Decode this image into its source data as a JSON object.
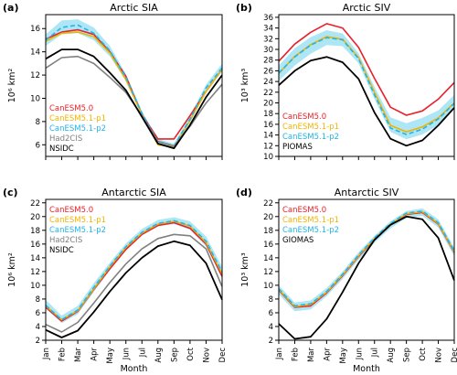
{
  "colors": {
    "CanESM5.0": "#e8202a",
    "CanESM5.1-p1": "#f0b400",
    "CanESM5.1-p2": "#22b4e6",
    "Had2CIS": "#808080",
    "NSIDC": "#000000",
    "PIOMAS": "#000000",
    "GIOMAS": "#000000",
    "band": "#aee6f6"
  },
  "chart_data": [
    {
      "type": "line",
      "panel_label": "(a)",
      "title": "Arctic SIA",
      "xlabel": "",
      "ylabel": "10⁶ km²",
      "categories": [
        "Jan",
        "Feb",
        "Mar",
        "Apr",
        "May",
        "Jun",
        "Jul",
        "Aug",
        "Sep",
        "Oct",
        "Nov",
        "Dec"
      ],
      "ylim": [
        5,
        17.2
      ],
      "yticks": [
        6,
        8,
        10,
        12,
        14,
        16
      ],
      "band": {
        "upper": [
          15.5,
          16.7,
          16.8,
          16.1,
          14.5,
          12.1,
          8.9,
          6.5,
          6.1,
          8.5,
          11.2,
          13.0
        ],
        "lower": [
          14.5,
          15.5,
          15.6,
          15.0,
          13.6,
          11.5,
          8.5,
          6.0,
          5.6,
          7.9,
          10.6,
          12.3
        ]
      },
      "series": [
        {
          "name": "CanESM5.0",
          "values": [
            15.1,
            15.7,
            15.9,
            15.5,
            14.0,
            11.9,
            8.6,
            6.5,
            6.5,
            8.5,
            10.6,
            12.5
          ]
        },
        {
          "name": "CanESM5.1-p1",
          "values": [
            14.9,
            15.6,
            15.7,
            15.3,
            13.9,
            11.6,
            8.6,
            6.0,
            5.8,
            8.1,
            10.6,
            12.5
          ]
        },
        {
          "name": "CanESM5.1-p2",
          "values": [
            15.0,
            16.1,
            16.3,
            15.6,
            14.1,
            11.8,
            8.7,
            6.3,
            5.9,
            8.2,
            10.9,
            12.6
          ]
        },
        {
          "name": "Had2CIS",
          "values": [
            12.6,
            13.5,
            13.6,
            13.0,
            11.8,
            10.5,
            8.5,
            6.3,
            5.9,
            7.6,
            9.6,
            11.2
          ]
        },
        {
          "name": "NSIDC",
          "values": [
            13.4,
            14.2,
            14.2,
            13.6,
            12.2,
            10.7,
            8.4,
            6.1,
            5.7,
            7.7,
            10.1,
            12.0
          ]
        }
      ],
      "legend": [
        "CanESM5.0",
        "CanESM5.1-p1",
        "CanESM5.1-p2",
        "Had2CIS",
        "NSIDC"
      ]
    },
    {
      "type": "line",
      "panel_label": "(b)",
      "title": "Arctic SIV",
      "xlabel": "",
      "ylabel": "10³ km³",
      "categories": [
        "Jan",
        "Feb",
        "Mar",
        "Apr",
        "May",
        "Jun",
        "Jul",
        "Aug",
        "Sep",
        "Oct",
        "Nov",
        "Dec"
      ],
      "ylim": [
        10,
        36.5
      ],
      "yticks": [
        10,
        12,
        14,
        16,
        18,
        20,
        22,
        24,
        26,
        28,
        30,
        32,
        34,
        36
      ],
      "band": {
        "upper": [
          27.0,
          30.2,
          32.3,
          33.6,
          33.0,
          29.3,
          23.0,
          17.3,
          16.2,
          17.2,
          18.6,
          21.5
        ],
        "lower": [
          24.1,
          27.0,
          29.2,
          30.8,
          30.6,
          27.4,
          20.7,
          14.6,
          13.2,
          14.1,
          15.8,
          18.8
        ]
      },
      "series": [
        {
          "name": "CanESM5.0",
          "values": [
            27.8,
            31.0,
            33.2,
            34.8,
            34.0,
            30.4,
            24.6,
            19.2,
            17.7,
            18.5,
            20.7,
            23.8
          ]
        },
        {
          "name": "CanESM5.1-p1",
          "values": [
            25.5,
            28.7,
            30.9,
            32.4,
            31.9,
            28.5,
            22.0,
            15.8,
            14.6,
            15.5,
            17.2,
            20.0
          ]
        },
        {
          "name": "CanESM5.1-p2",
          "values": [
            25.6,
            28.6,
            30.8,
            32.2,
            31.8,
            28.3,
            21.5,
            15.3,
            14.1,
            15.1,
            17.0,
            19.9
          ]
        },
        {
          "name": "PIOMAS",
          "values": [
            23.3,
            26.0,
            27.9,
            28.6,
            27.6,
            24.5,
            18.2,
            13.3,
            12.0,
            13.0,
            15.8,
            19.1
          ]
        }
      ],
      "legend": [
        "CanESM5.0",
        "CanESM5.1-p1",
        "CanESM5.1-p2",
        "PIOMAS"
      ]
    },
    {
      "type": "line",
      "panel_label": "(c)",
      "title": "Antarctic SIA",
      "xlabel": "Month",
      "ylabel": "10⁶ km²",
      "categories": [
        "Jan",
        "Feb",
        "Mar",
        "Apr",
        "May",
        "Jun",
        "Jul",
        "Aug",
        "Sep",
        "Oct",
        "Nov",
        "Dec"
      ],
      "ylim": [
        2,
        22.5
      ],
      "yticks": [
        2,
        4,
        6,
        8,
        10,
        12,
        14,
        16,
        18,
        20,
        22
      ],
      "band": {
        "upper": [
          7.9,
          5.6,
          7.0,
          10.3,
          13.3,
          16.1,
          18.2,
          19.5,
          19.9,
          19.3,
          17.1,
          12.7
        ],
        "lower": [
          6.6,
          4.5,
          5.8,
          9.0,
          12.2,
          15.1,
          17.3,
          18.6,
          18.9,
          18.1,
          15.6,
          11.0
        ]
      },
      "series": [
        {
          "name": "CanESM5.0",
          "values": [
            6.8,
            4.8,
            6.2,
            9.4,
            12.4,
            15.2,
            17.4,
            18.7,
            19.1,
            18.3,
            16.0,
            11.3
          ]
        },
        {
          "name": "CanESM5.1-p1",
          "values": [
            7.0,
            5.0,
            6.3,
            9.5,
            12.7,
            15.5,
            17.6,
            18.9,
            19.3,
            18.6,
            16.2,
            11.7
          ]
        },
        {
          "name": "CanESM5.1-p2",
          "values": [
            7.1,
            5.0,
            6.4,
            9.7,
            12.8,
            15.6,
            17.7,
            19.0,
            19.4,
            18.7,
            16.4,
            11.9
          ]
        },
        {
          "name": "Had2CIS",
          "values": [
            4.3,
            3.2,
            4.6,
            7.4,
            10.4,
            13.1,
            15.3,
            16.8,
            17.4,
            17.2,
            15.3,
            9.8
          ]
        },
        {
          "name": "NSIDC",
          "values": [
            3.5,
            2.4,
            3.4,
            6.1,
            9.1,
            11.8,
            14.0,
            15.7,
            16.4,
            15.8,
            13.2,
            7.9
          ]
        }
      ],
      "legend": [
        "CanESM5.0",
        "CanESM5.1-p1",
        "CanESM5.1-p2",
        "Had2CIS",
        "NSIDC"
      ]
    },
    {
      "type": "line",
      "panel_label": "(d)",
      "title": "Antarctic SIV",
      "xlabel": "Month",
      "ylabel": "10³ km³",
      "categories": [
        "Jan",
        "Feb",
        "Mar",
        "Apr",
        "May",
        "Jun",
        "Jul",
        "Aug",
        "Sep",
        "Oct",
        "Nov",
        "Dec"
      ],
      "ylim": [
        2,
        22.5
      ],
      "yticks": [
        2,
        4,
        6,
        8,
        10,
        12,
        14,
        16,
        18,
        20,
        22
      ],
      "band": {
        "upper": [
          10.0,
          7.5,
          7.8,
          9.6,
          12.0,
          14.8,
          17.2,
          19.3,
          20.8,
          21.2,
          19.6,
          15.5
        ],
        "lower": [
          8.7,
          6.2,
          6.5,
          8.4,
          10.9,
          13.7,
          16.2,
          18.3,
          19.8,
          20.1,
          18.4,
          14.2
        ]
      },
      "series": [
        {
          "name": "CanESM5.0",
          "values": [
            9.3,
            6.8,
            7.0,
            8.9,
            11.4,
            14.2,
            16.7,
            18.8,
            20.3,
            20.6,
            18.9,
            14.8
          ]
        },
        {
          "name": "CanESM5.1-p1",
          "values": [
            9.4,
            6.9,
            7.2,
            9.0,
            11.5,
            14.3,
            16.8,
            18.9,
            20.4,
            20.7,
            19.0,
            14.9
          ]
        },
        {
          "name": "CanESM5.1-p2",
          "values": [
            9.5,
            7.0,
            7.3,
            9.1,
            11.6,
            14.4,
            16.9,
            19.0,
            20.5,
            20.8,
            19.1,
            15.0
          ]
        },
        {
          "name": "GIOMAS",
          "values": [
            4.4,
            2.2,
            2.5,
            5.1,
            9.0,
            13.2,
            16.6,
            18.8,
            20.0,
            19.6,
            16.9,
            10.7
          ]
        }
      ],
      "legend": [
        "CanESM5.0",
        "CanESM5.1-p1",
        "CanESM5.1-p2",
        "GIOMAS"
      ]
    }
  ]
}
